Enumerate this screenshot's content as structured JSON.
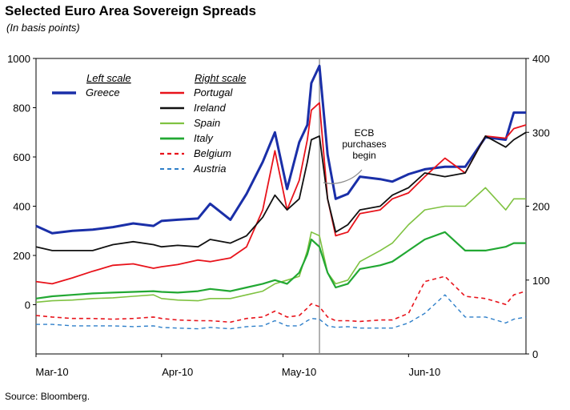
{
  "title": "Selected Euro Area Sovereign Spreads",
  "subtitle": "(In basis points)",
  "source": "Source: Bloomberg.",
  "annotation": "ECB purchases begin",
  "chart_data": {
    "type": "line",
    "title": "Selected Euro Area Sovereign Spreads",
    "subtitle": "(In basis points)",
    "x_tick_labels": [
      "Mar-10",
      "Apr-10",
      "May-10",
      "Jun-10"
    ],
    "x_ticks": [
      "2010-03-01",
      "2010-04-01",
      "2010-05-01",
      "2010-06-01"
    ],
    "xlim": [
      "2010-03-01",
      "2010-06-30"
    ],
    "event_line": "2010-05-10",
    "left_axis": {
      "ylim": [
        -200,
        1000
      ],
      "ticks": [
        0,
        200,
        400,
        600,
        800,
        1000
      ],
      "tick_labels": [
        "0",
        "200",
        "400",
        "600",
        "800",
        "1000"
      ]
    },
    "right_axis": {
      "ylim": [
        0,
        400
      ],
      "ticks": [
        0,
        100,
        200,
        300,
        400
      ],
      "tick_labels": [
        "0",
        "100",
        "200",
        "300",
        "400"
      ]
    },
    "legend": {
      "left_header": "Left scale",
      "right_header": "Right scale",
      "placement": "top-left"
    },
    "grid": false,
    "series": [
      {
        "name": "Greece",
        "axis": "left",
        "color": "#1a2fa8",
        "dash": "solid",
        "width": 3,
        "x": [
          "2010-03-01",
          "2010-03-05",
          "2010-03-10",
          "2010-03-15",
          "2010-03-20",
          "2010-03-25",
          "2010-03-30",
          "2010-04-01",
          "2010-04-05",
          "2010-04-10",
          "2010-04-13",
          "2010-04-18",
          "2010-04-22",
          "2010-04-26",
          "2010-04-29",
          "2010-05-02",
          "2010-05-05",
          "2010-05-07",
          "2010-05-08",
          "2010-05-10",
          "2010-05-12",
          "2010-05-14",
          "2010-05-17",
          "2010-05-20",
          "2010-05-25",
          "2010-05-28",
          "2010-06-01",
          "2010-06-05",
          "2010-06-10",
          "2010-06-15",
          "2010-06-20",
          "2010-06-25",
          "2010-06-27",
          "2010-06-30"
        ],
        "y": [
          320,
          290,
          300,
          305,
          315,
          330,
          320,
          340,
          345,
          350,
          410,
          345,
          450,
          580,
          700,
          470,
          660,
          730,
          900,
          970,
          610,
          430,
          450,
          520,
          510,
          500,
          530,
          550,
          560,
          560,
          680,
          670,
          780,
          780
        ]
      },
      {
        "name": "Portugal",
        "axis": "right",
        "color": "#e8131b",
        "dash": "solid",
        "width": 1.8,
        "x": [
          "2010-03-01",
          "2010-03-05",
          "2010-03-10",
          "2010-03-15",
          "2010-03-20",
          "2010-03-25",
          "2010-03-30",
          "2010-04-01",
          "2010-04-05",
          "2010-04-10",
          "2010-04-13",
          "2010-04-18",
          "2010-04-22",
          "2010-04-26",
          "2010-04-29",
          "2010-05-02",
          "2010-05-05",
          "2010-05-07",
          "2010-05-08",
          "2010-05-10",
          "2010-05-12",
          "2010-05-14",
          "2010-05-17",
          "2010-05-20",
          "2010-05-25",
          "2010-05-28",
          "2010-06-01",
          "2010-06-05",
          "2010-06-10",
          "2010-06-15",
          "2010-06-20",
          "2010-06-25",
          "2010-06-27",
          "2010-06-30"
        ],
        "y": [
          98,
          95,
          103,
          112,
          120,
          122,
          116,
          118,
          121,
          127,
          125,
          130,
          145,
          195,
          275,
          195,
          235,
          290,
          330,
          340,
          210,
          160,
          165,
          190,
          195,
          210,
          218,
          240,
          265,
          245,
          295,
          292,
          305,
          310
        ]
      },
      {
        "name": "Ireland",
        "axis": "right",
        "color": "#111111",
        "dash": "solid",
        "width": 1.8,
        "x": [
          "2010-03-01",
          "2010-03-05",
          "2010-03-10",
          "2010-03-15",
          "2010-03-20",
          "2010-03-25",
          "2010-03-30",
          "2010-04-01",
          "2010-04-05",
          "2010-04-10",
          "2010-04-13",
          "2010-04-18",
          "2010-04-22",
          "2010-04-26",
          "2010-04-29",
          "2010-05-02",
          "2010-05-05",
          "2010-05-07",
          "2010-05-08",
          "2010-05-10",
          "2010-05-12",
          "2010-05-14",
          "2010-05-17",
          "2010-05-20",
          "2010-05-25",
          "2010-05-28",
          "2010-06-01",
          "2010-06-05",
          "2010-06-10",
          "2010-06-15",
          "2010-06-20",
          "2010-06-25",
          "2010-06-27",
          "2010-06-30"
        ],
        "y": [
          145,
          140,
          140,
          140,
          148,
          152,
          148,
          145,
          147,
          145,
          155,
          150,
          160,
          185,
          215,
          195,
          210,
          260,
          290,
          295,
          210,
          165,
          175,
          195,
          200,
          215,
          225,
          245,
          240,
          245,
          295,
          280,
          290,
          300
        ]
      },
      {
        "name": "Spain",
        "axis": "right",
        "color": "#7fc241",
        "dash": "solid",
        "width": 1.6,
        "x": [
          "2010-03-01",
          "2010-03-05",
          "2010-03-10",
          "2010-03-15",
          "2010-03-20",
          "2010-03-25",
          "2010-03-30",
          "2010-04-01",
          "2010-04-05",
          "2010-04-10",
          "2010-04-13",
          "2010-04-18",
          "2010-04-22",
          "2010-04-26",
          "2010-04-29",
          "2010-05-02",
          "2010-05-05",
          "2010-05-07",
          "2010-05-08",
          "2010-05-10",
          "2010-05-12",
          "2010-05-14",
          "2010-05-17",
          "2010-05-20",
          "2010-05-25",
          "2010-05-28",
          "2010-06-01",
          "2010-06-05",
          "2010-06-10",
          "2010-06-15",
          "2010-06-20",
          "2010-06-25",
          "2010-06-27",
          "2010-06-30"
        ],
        "y": [
          70,
          72,
          73,
          75,
          76,
          78,
          80,
          75,
          73,
          72,
          75,
          75,
          80,
          85,
          95,
          100,
          105,
          140,
          165,
          160,
          110,
          95,
          100,
          125,
          140,
          150,
          175,
          195,
          200,
          200,
          225,
          195,
          210,
          210
        ]
      },
      {
        "name": "Italy",
        "axis": "right",
        "color": "#22a833",
        "dash": "solid",
        "width": 2.2,
        "x": [
          "2010-03-01",
          "2010-03-05",
          "2010-03-10",
          "2010-03-15",
          "2010-03-20",
          "2010-03-25",
          "2010-03-30",
          "2010-04-01",
          "2010-04-05",
          "2010-04-10",
          "2010-04-13",
          "2010-04-18",
          "2010-04-22",
          "2010-04-26",
          "2010-04-29",
          "2010-05-02",
          "2010-05-05",
          "2010-05-07",
          "2010-05-08",
          "2010-05-10",
          "2010-05-12",
          "2010-05-14",
          "2010-05-17",
          "2010-05-20",
          "2010-05-25",
          "2010-05-28",
          "2010-06-01",
          "2010-06-05",
          "2010-06-10",
          "2010-06-15",
          "2010-06-20",
          "2010-06-25",
          "2010-06-27",
          "2010-06-30"
        ],
        "y": [
          75,
          78,
          80,
          82,
          83,
          84,
          85,
          84,
          83,
          85,
          88,
          85,
          90,
          95,
          100,
          95,
          110,
          135,
          155,
          145,
          110,
          90,
          95,
          115,
          120,
          125,
          140,
          155,
          165,
          140,
          140,
          145,
          150,
          150
        ]
      },
      {
        "name": "Belgium",
        "axis": "right",
        "color": "#e8131b",
        "dash": "dashed",
        "width": 1.6,
        "x": [
          "2010-03-01",
          "2010-03-05",
          "2010-03-10",
          "2010-03-15",
          "2010-03-20",
          "2010-03-25",
          "2010-03-30",
          "2010-04-01",
          "2010-04-05",
          "2010-04-10",
          "2010-04-13",
          "2010-04-18",
          "2010-04-22",
          "2010-04-26",
          "2010-04-29",
          "2010-05-02",
          "2010-05-05",
          "2010-05-07",
          "2010-05-08",
          "2010-05-10",
          "2010-05-12",
          "2010-05-14",
          "2010-05-17",
          "2010-05-20",
          "2010-05-25",
          "2010-05-28",
          "2010-06-01",
          "2010-06-05",
          "2010-06-10",
          "2010-06-15",
          "2010-06-20",
          "2010-06-25",
          "2010-06-27",
          "2010-06-30"
        ],
        "y": [
          52,
          50,
          48,
          48,
          47,
          48,
          50,
          48,
          46,
          45,
          45,
          43,
          48,
          50,
          58,
          50,
          52,
          62,
          68,
          64,
          50,
          45,
          45,
          44,
          46,
          46,
          55,
          98,
          105,
          78,
          75,
          67,
          80,
          85
        ]
      },
      {
        "name": "Austria",
        "axis": "right",
        "color": "#2e7fc9",
        "dash": "dashed",
        "width": 1.4,
        "x": [
          "2010-03-01",
          "2010-03-05",
          "2010-03-10",
          "2010-03-15",
          "2010-03-20",
          "2010-03-25",
          "2010-03-30",
          "2010-04-01",
          "2010-04-05",
          "2010-04-10",
          "2010-04-13",
          "2010-04-18",
          "2010-04-22",
          "2010-04-26",
          "2010-04-29",
          "2010-05-02",
          "2010-05-05",
          "2010-05-07",
          "2010-05-08",
          "2010-05-10",
          "2010-05-12",
          "2010-05-14",
          "2010-05-17",
          "2010-05-20",
          "2010-05-25",
          "2010-05-28",
          "2010-06-01",
          "2010-06-05",
          "2010-06-10",
          "2010-06-15",
          "2010-06-20",
          "2010-06-25",
          "2010-06-27",
          "2010-06-30"
        ],
        "y": [
          40,
          40,
          38,
          38,
          38,
          37,
          38,
          36,
          35,
          34,
          36,
          34,
          37,
          38,
          45,
          38,
          38,
          45,
          48,
          47,
          38,
          36,
          37,
          35,
          35,
          35,
          42,
          55,
          80,
          50,
          50,
          42,
          47,
          50
        ]
      }
    ]
  }
}
